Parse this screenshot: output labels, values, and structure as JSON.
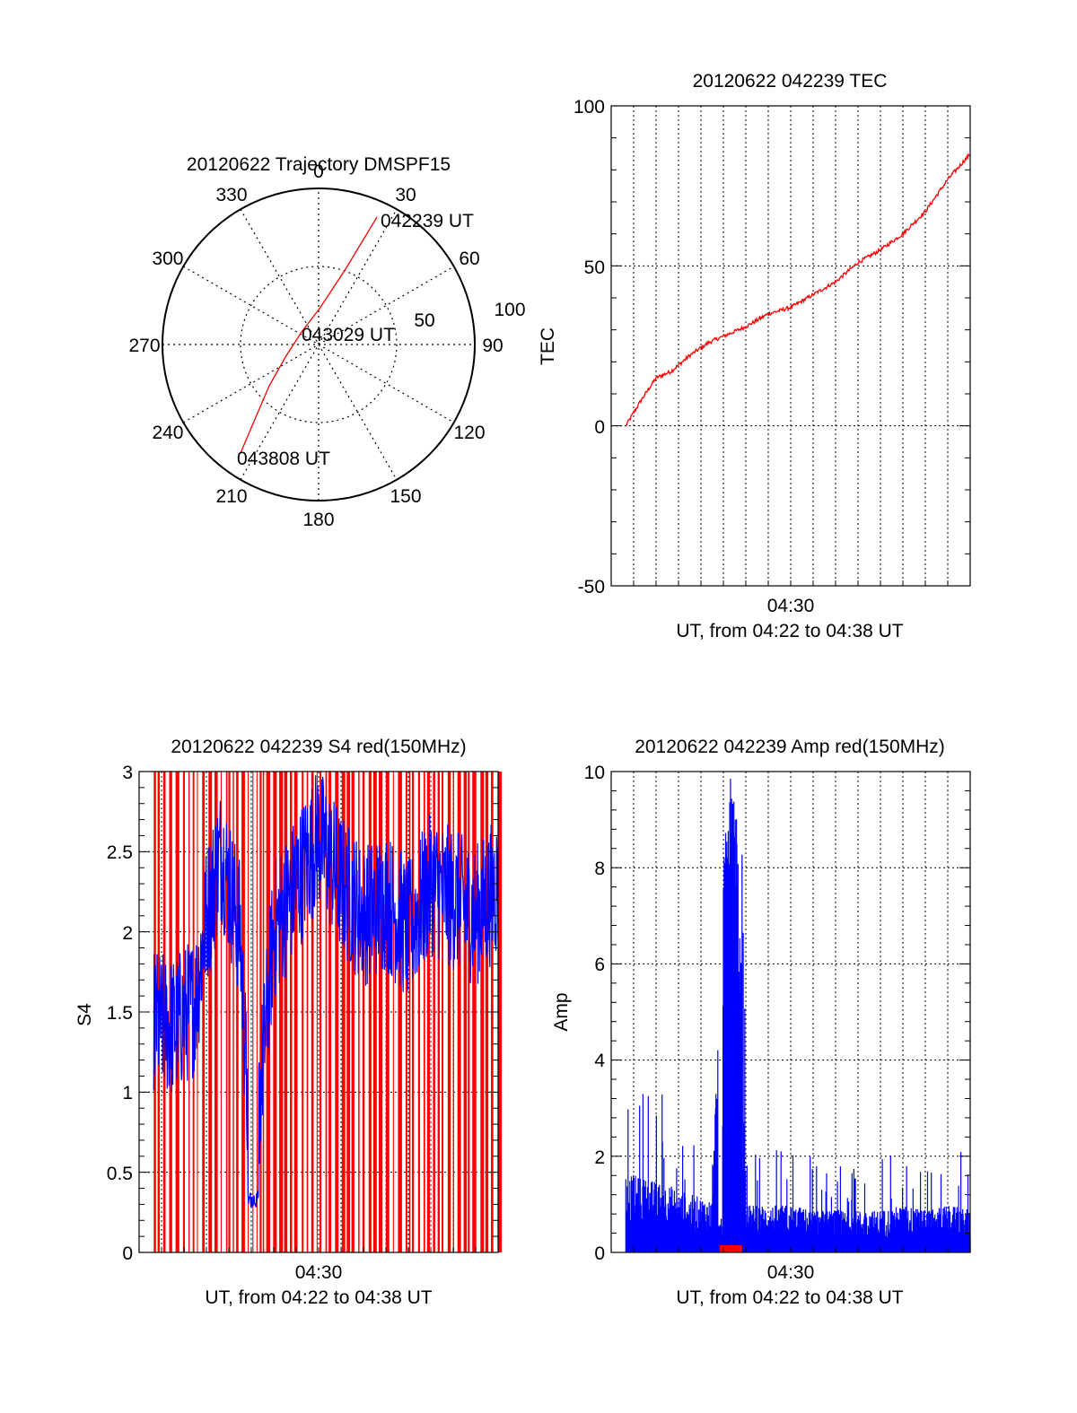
{
  "polar": {
    "title": "20120622 Trajectory DMSPF15",
    "az_labels": [
      "0",
      "30",
      "60",
      "90",
      "120",
      "150",
      "180",
      "210",
      "240",
      "270",
      "300",
      "330"
    ],
    "ring_labels": [
      "50",
      "100"
    ],
    "start_label": "042239 UT",
    "mid_label": "043029 UT",
    "end_label": "043808 UT",
    "trace_color": "#ff0000"
  },
  "charts": [
    {
      "id": "tec",
      "type": "line",
      "title": "20120622 042239 TEC",
      "ylabel": "TEC",
      "xlabel": "UT, from 04:22 to 04:38 UT",
      "x_tick_labels": [
        "04:30"
      ],
      "y_tick_labels": [
        "-50",
        "0",
        "50",
        "100"
      ],
      "ylim": [
        -50,
        100
      ],
      "series": [
        {
          "color": "#ff0000",
          "x": [
            "04:22:39",
            "04:23:20",
            "04:24:00",
            "04:24:40",
            "04:25:30",
            "04:26:20",
            "04:27:00",
            "04:28:00",
            "04:29:00",
            "04:30:00",
            "04:31:00",
            "04:32:00",
            "04:33:00",
            "04:34:00",
            "04:35:00",
            "04:36:00",
            "04:37:00",
            "04:38:00"
          ],
          "values": [
            0,
            8,
            15,
            17,
            22,
            26,
            28,
            31,
            35,
            37,
            41,
            45,
            51,
            55,
            60,
            67,
            77,
            85
          ]
        }
      ]
    },
    {
      "id": "s4",
      "type": "line",
      "title": "20120622 042239 S4 red(150MHz)",
      "ylabel": "S4",
      "xlabel": "UT, from 04:22 to 04:38 UT",
      "x_tick_labels": [
        "04:30"
      ],
      "y_tick_labels": [
        "0",
        "0.5",
        "1",
        "1.5",
        "2",
        "2.5",
        "3"
      ],
      "ylim": [
        0,
        3
      ],
      "series": [
        {
          "color": "#ff0000",
          "note_values": "vertical spikes spanning full range 0-3 throughout"
        },
        {
          "color": "#0000ff",
          "x": [
            "04:22:39",
            "04:23:30",
            "04:24:30",
            "04:25:00",
            "04:25:40",
            "04:26:30",
            "04:27:00",
            "04:28:00",
            "04:29:00",
            "04:30:00",
            "04:31:00",
            "04:32:00",
            "04:33:00",
            "04:34:00",
            "04:35:00",
            "04:36:00",
            "04:37:00",
            "04:38:00"
          ],
          "values": [
            1.45,
            1.4,
            1.55,
            2.1,
            2.5,
            2.0,
            0.35,
            2.0,
            2.3,
            2.6,
            2.3,
            2.1,
            2.2,
            2.0,
            2.3,
            2.2,
            2.1,
            2.3
          ]
        }
      ]
    },
    {
      "id": "amp",
      "type": "line",
      "title": "20120622 042239 Amp red(150MHz)",
      "ylabel": "Amp",
      "xlabel": "UT, from 04:22 to 04:38 UT",
      "x_tick_labels": [
        "04:30"
      ],
      "y_tick_labels": [
        "0",
        "2",
        "4",
        "6",
        "8",
        "10"
      ],
      "ylim": [
        0,
        10
      ],
      "series": [
        {
          "color": "#0000ff",
          "x": [
            "04:22:39",
            "04:23:30",
            "04:24:30",
            "04:25:30",
            "04:26:30",
            "04:27:00",
            "04:27:20",
            "04:27:40",
            "04:28:00",
            "04:29:00",
            "04:30:00",
            "04:31:00",
            "04:32:00",
            "04:33:00",
            "04:34:00",
            "04:35:00",
            "04:36:00",
            "04:37:00",
            "04:38:00"
          ],
          "values": [
            1.5,
            1.4,
            1.3,
            1.1,
            1.0,
            8.0,
            9.5,
            8.5,
            0.9,
            0.9,
            0.9,
            0.8,
            0.8,
            0.8,
            0.8,
            0.9,
            0.8,
            0.9,
            0.8
          ]
        },
        {
          "color": "#ff0000",
          "x": [
            "04:26:50",
            "04:27:50"
          ],
          "values": [
            0.15,
            0.15
          ]
        }
      ]
    }
  ]
}
